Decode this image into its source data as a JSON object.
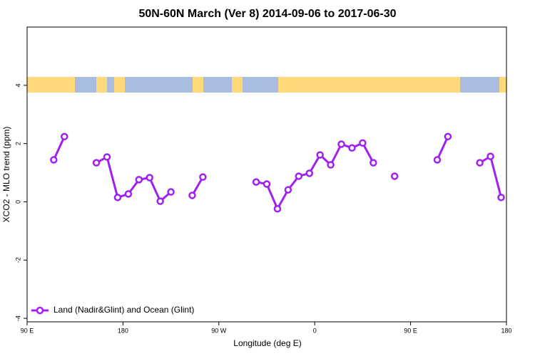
{
  "chart_data": {
    "type": "line",
    "title": "50N-60N March (Ver 8)   2014-09-06 to 2017-06-30",
    "x_label": "Longitude (deg E)",
    "y_label": "XCO2 - MLO trend (ppm)",
    "x": [
      115,
      125,
      135,
      155,
      165,
      175,
      185,
      195,
      205,
      215,
      225,
      235,
      245,
      255,
      265,
      305,
      315,
      325,
      335,
      345,
      355,
      365,
      375,
      385,
      395,
      405,
      415,
      425,
      435,
      445,
      475,
      485,
      495,
      515,
      525,
      535
    ],
    "series": [
      {
        "name": "Land (Nadir&Glint) and Ocean (Glint)",
        "color": "#a020f0",
        "values": [
          1.44,
          2.24,
          null,
          1.34,
          1.54,
          0.15,
          0.27,
          0.76,
          0.83,
          0.02,
          0.34,
          null,
          0.22,
          0.85,
          null,
          0.68,
          0.61,
          -0.24,
          0.41,
          0.88,
          0.98,
          1.61,
          1.27,
          1.98,
          1.85,
          2.02,
          1.34,
          null,
          0.88,
          null,
          1.44,
          2.24,
          null,
          1.34,
          1.56,
          0.15
        ]
      }
    ],
    "xlim": [
      90,
      540
    ],
    "xticks": [
      {
        "value": 90,
        "label": "90 E"
      },
      180,
      {
        "value": 270,
        "label": "90 W"
      },
      {
        "value": 360,
        "label": "0"
      },
      {
        "value": 450,
        "label": "90 E"
      },
      {
        "value": 540,
        "label": "180"
      }
    ],
    "ylim": [
      -4.12,
      6
    ],
    "yticks": [
      -4,
      -2,
      0,
      2,
      4
    ],
    "legend": "bottom-left"
  }
}
